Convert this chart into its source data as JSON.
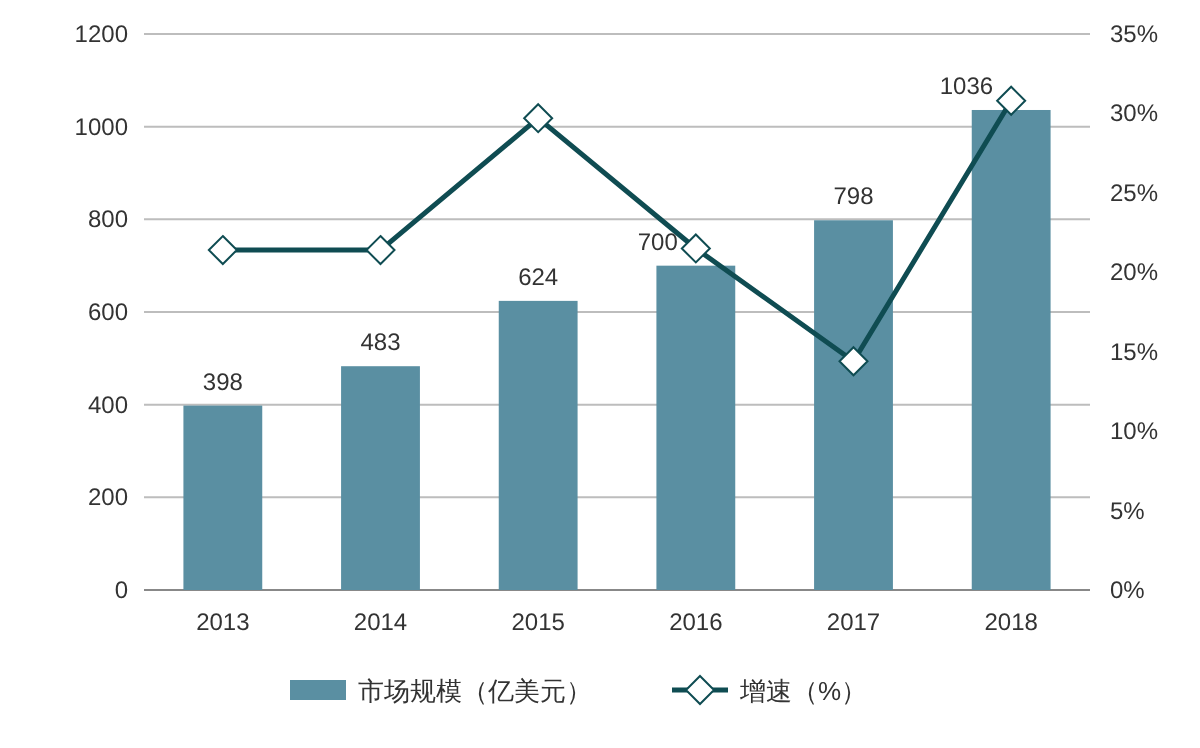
{
  "chart_data": {
    "type": "bar",
    "categories": [
      "2013",
      "2014",
      "2015",
      "2016",
      "2017",
      "2018"
    ],
    "series": [
      {
        "name": "市场规模（亿美元）",
        "color": "#5a8fa2",
        "values": [
          398,
          483,
          624,
          700,
          798,
          1036
        ],
        "value_labels": [
          "398",
          "483",
          "624",
          "700",
          "798",
          "1036"
        ]
      },
      {
        "name": "增速（%）",
        "type": "line",
        "axis": "y2",
        "color": "#0f4c52",
        "marker": "diamond",
        "values": [
          21.4,
          21.4,
          29.7,
          21.5,
          14.4,
          30.8
        ]
      }
    ],
    "ylim": [
      0,
      1200
    ],
    "yticks": [
      0,
      200,
      400,
      600,
      800,
      1000,
      1200
    ],
    "y2lim": [
      0,
      35
    ],
    "y2ticks": [
      {
        "value": 0,
        "label": "0%"
      },
      {
        "value": 5,
        "label": "5%"
      },
      {
        "value": 10,
        "label": "10%"
      },
      {
        "value": 15,
        "label": "15%"
      },
      {
        "value": 20,
        "label": "20%"
      },
      {
        "value": 25,
        "label": "25%"
      },
      {
        "value": 30,
        "label": "30%"
      },
      {
        "value": 35,
        "label": "35%"
      }
    ],
    "grid": "y",
    "legend": "bottom"
  }
}
